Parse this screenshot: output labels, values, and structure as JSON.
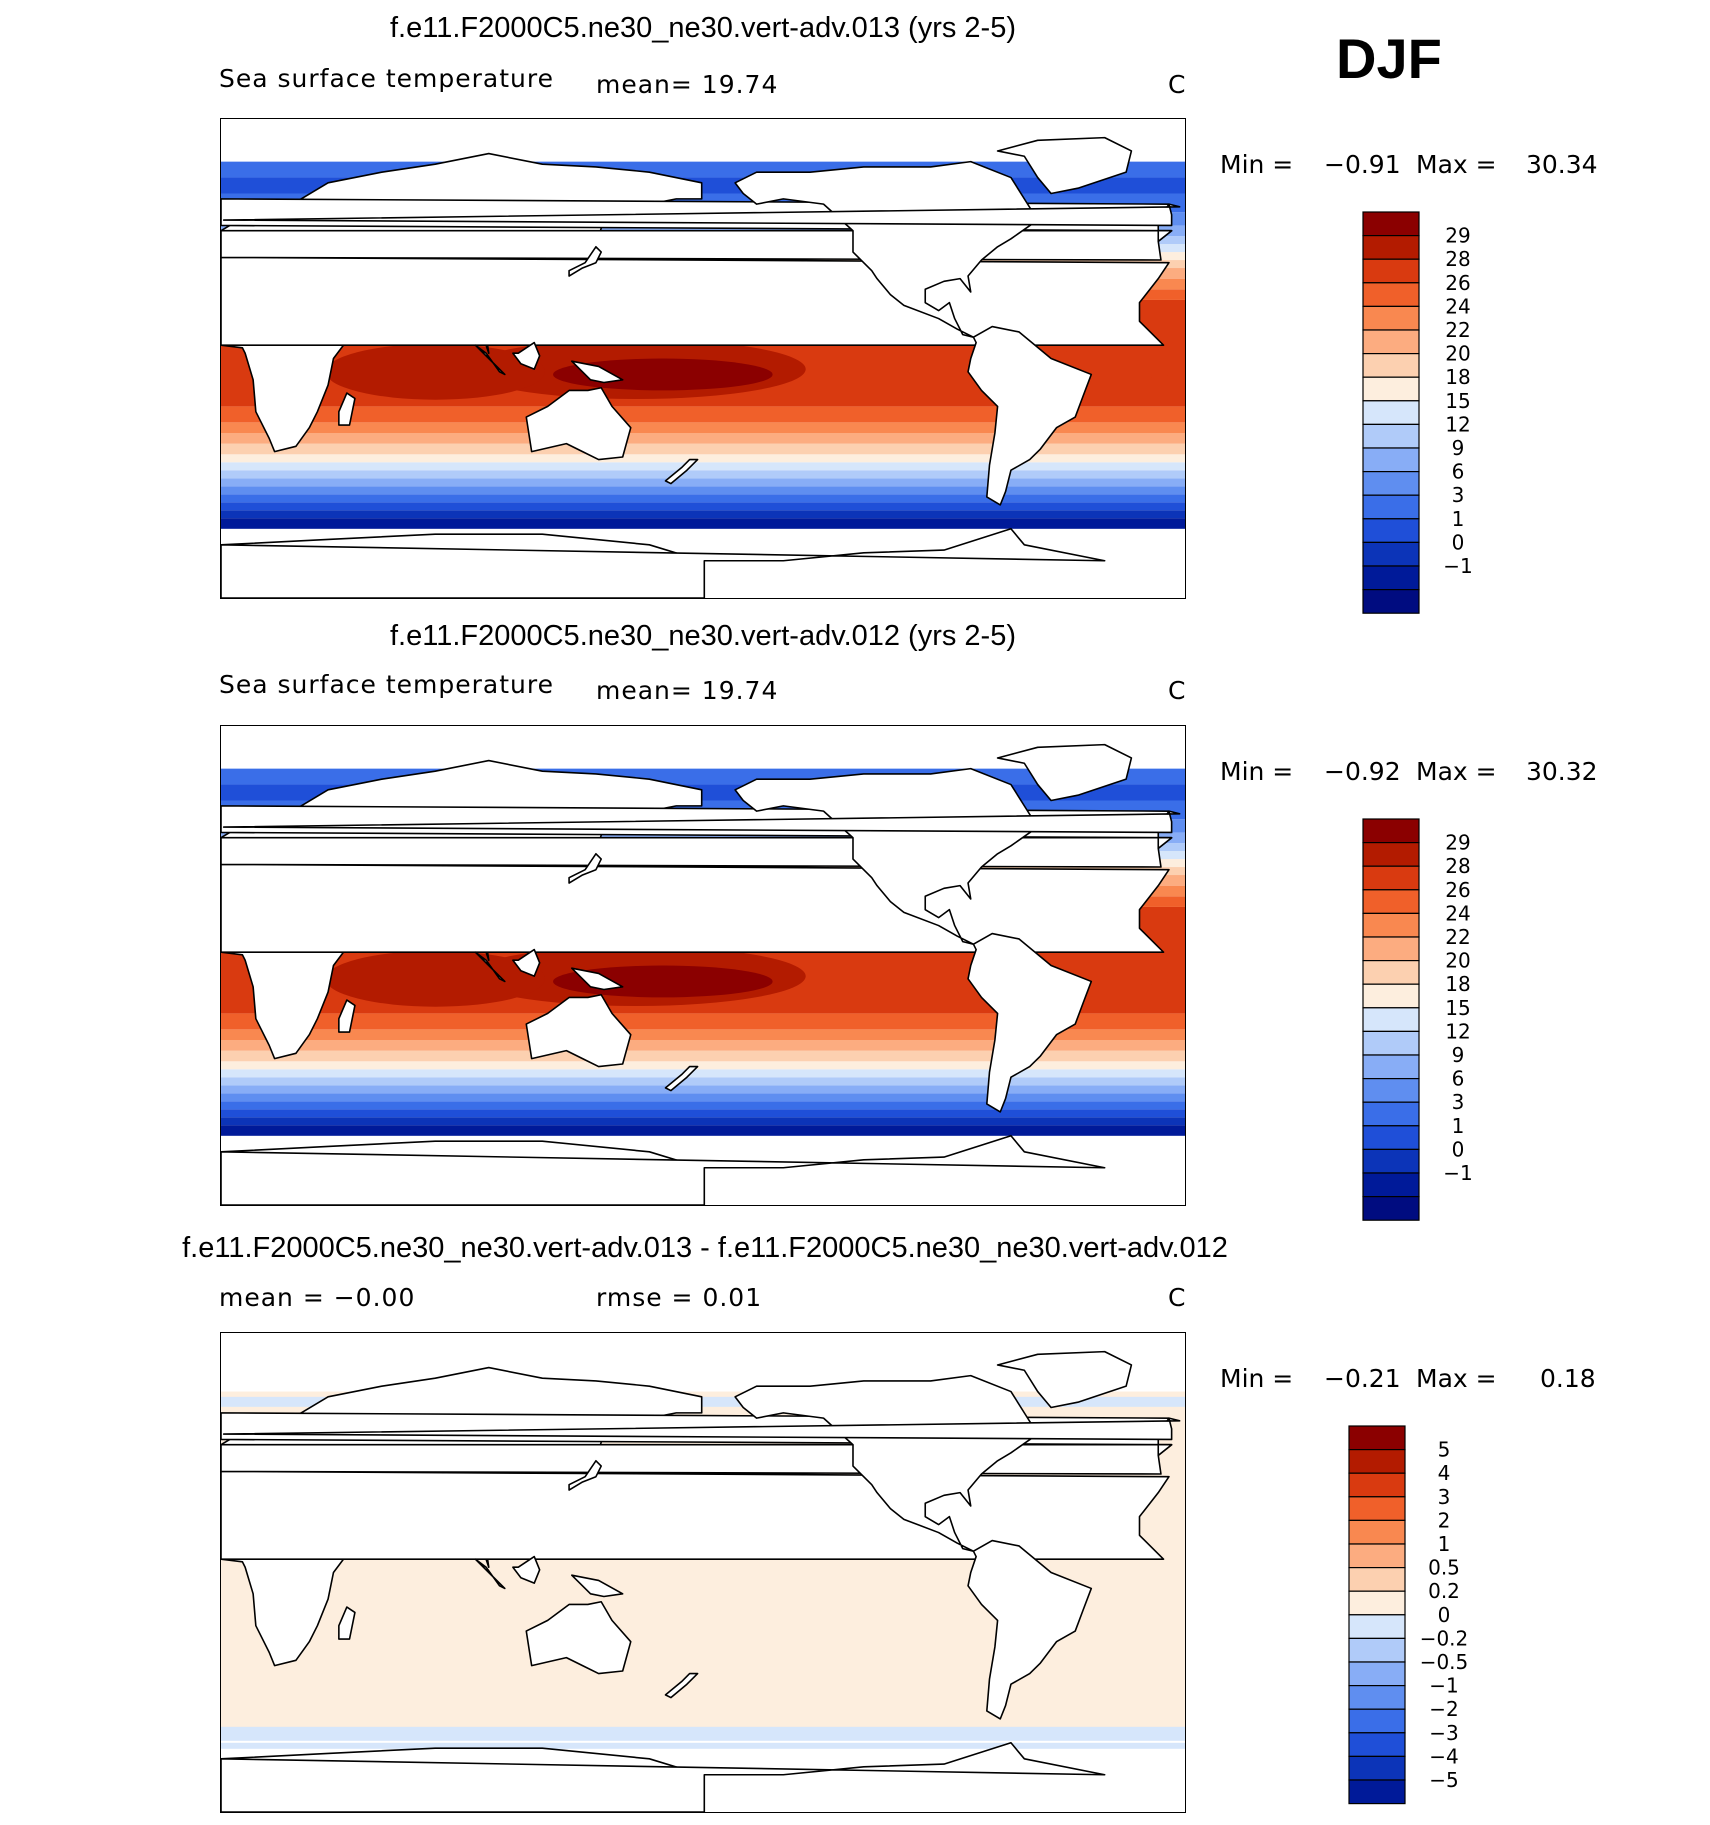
{
  "season": "DJF",
  "panels": [
    {
      "title": "f.e11.F2000C5.ne30_ne30.vert-adv.013 (yrs 2-5)",
      "variable": "Sea surface temperature",
      "stat1": "mean=   19.74",
      "stat2": "",
      "units": "C",
      "min_label": "Min =",
      "min_value": "−0.91",
      "max_label": "Max =",
      "max_value": "30.34",
      "colorbar": {
        "colors": [
          "#8b0000",
          "#b31b00",
          "#d93a10",
          "#f0602a",
          "#f98850",
          "#fcac80",
          "#fcd0b0",
          "#fdeede",
          "#d6e6fb",
          "#b0cbf9",
          "#88adf6",
          "#5f8ef0",
          "#3a6ee8",
          "#1f4fd8",
          "#0c34b8",
          "#001a99",
          "#000c80"
        ],
        "labels": [
          "29",
          "28",
          "26",
          "24",
          "22",
          "20",
          "18",
          "15",
          "12",
          "9",
          "6",
          "3",
          "1",
          "0",
          "−1"
        ]
      }
    },
    {
      "title": "f.e11.F2000C5.ne30_ne30.vert-adv.012 (yrs 2-5)",
      "variable": "Sea surface temperature",
      "stat1": "mean=   19.74",
      "stat2": "",
      "units": "C",
      "min_label": "Min =",
      "min_value": "−0.92",
      "max_label": "Max =",
      "max_value": "30.32",
      "colorbar": {
        "colors": [
          "#8b0000",
          "#b31b00",
          "#d93a10",
          "#f0602a",
          "#f98850",
          "#fcac80",
          "#fcd0b0",
          "#fdeede",
          "#d6e6fb",
          "#b0cbf9",
          "#88adf6",
          "#5f8ef0",
          "#3a6ee8",
          "#1f4fd8",
          "#0c34b8",
          "#001a99",
          "#000c80"
        ],
        "labels": [
          "29",
          "28",
          "26",
          "24",
          "22",
          "20",
          "18",
          "15",
          "12",
          "9",
          "6",
          "3",
          "1",
          "0",
          "−1"
        ]
      }
    },
    {
      "title": "f.e11.F2000C5.ne30_ne30.vert-adv.013 - f.e11.F2000C5.ne30_ne30.vert-adv.012",
      "variable": "",
      "stat1": "mean =   −0.00",
      "stat2": "rmse =    0.01",
      "units": "C",
      "min_label": "Min =",
      "min_value": "−0.21",
      "max_label": "Max =",
      "max_value": "0.18",
      "colorbar": {
        "colors": [
          "#8b0000",
          "#b31b00",
          "#d93a10",
          "#f0602a",
          "#f98850",
          "#fcac80",
          "#fcd0b0",
          "#fdeede",
          "#d6e6fb",
          "#b0cbf9",
          "#88adf6",
          "#5f8ef0",
          "#3a6ee8",
          "#1f4fd8",
          "#0c34b8",
          "#001a99"
        ],
        "labels": [
          "5",
          "4",
          "3",
          "2",
          "1",
          "0.5",
          "0.2",
          "0",
          "−0.2",
          "−0.5",
          "−1",
          "−2",
          "−3",
          "−4",
          "−5"
        ]
      }
    }
  ]
}
